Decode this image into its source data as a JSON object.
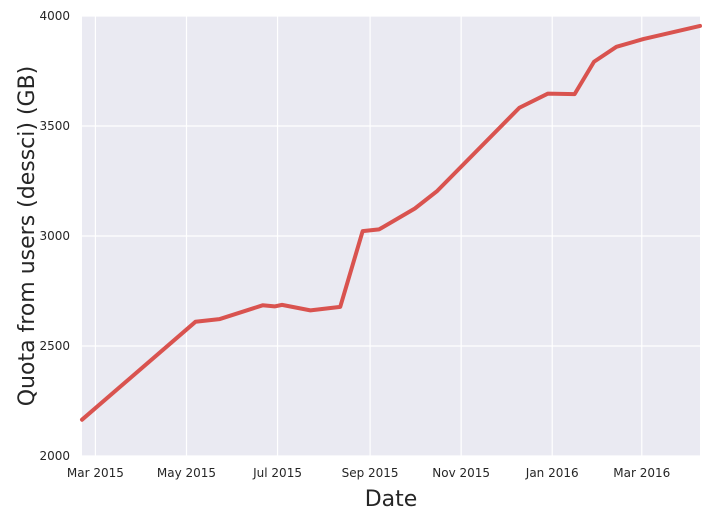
{
  "chart_data": {
    "type": "line",
    "title": "",
    "xlabel": "Date",
    "ylabel": "Quota from users (dessci) (GB)",
    "ylim": [
      2000,
      4000
    ],
    "xlim": [
      "2015-02-20",
      "2016-04-09"
    ],
    "grid": true,
    "x_tick_labels": [
      {
        "date": "2015-03-01",
        "label": "Mar 2015"
      },
      {
        "date": "2015-05-01",
        "label": "May 2015"
      },
      {
        "date": "2015-07-01",
        "label": "Jul 2015"
      },
      {
        "date": "2015-09-01",
        "label": "Sep 2015"
      },
      {
        "date": "2015-11-01",
        "label": "Nov 2015"
      },
      {
        "date": "2016-01-01",
        "label": "Jan 2016"
      },
      {
        "date": "2016-03-01",
        "label": "Mar 2016"
      }
    ],
    "y_ticks": [
      2000,
      2500,
      3000,
      3500,
      4000
    ],
    "y_tick_labels": [
      "2000",
      "2500",
      "3000",
      "3500",
      "4000"
    ],
    "series": [
      {
        "color": "#d9534f",
        "points": [
          {
            "x": "2015-02-20",
            "y": 2165
          },
          {
            "x": "2015-05-07",
            "y": 2610
          },
          {
            "x": "2015-05-23",
            "y": 2622
          },
          {
            "x": "2015-06-21",
            "y": 2685
          },
          {
            "x": "2015-06-29",
            "y": 2680
          },
          {
            "x": "2015-07-04",
            "y": 2687
          },
          {
            "x": "2015-07-23",
            "y": 2662
          },
          {
            "x": "2015-08-12",
            "y": 2678
          },
          {
            "x": "2015-08-27",
            "y": 3022
          },
          {
            "x": "2015-09-07",
            "y": 3030
          },
          {
            "x": "2015-10-01",
            "y": 3125
          },
          {
            "x": "2015-10-16",
            "y": 3205
          },
          {
            "x": "2015-12-10",
            "y": 3583
          },
          {
            "x": "2015-12-29",
            "y": 3647
          },
          {
            "x": "2016-01-16",
            "y": 3645
          },
          {
            "x": "2016-01-29",
            "y": 3792
          },
          {
            "x": "2016-02-13",
            "y": 3860
          },
          {
            "x": "2016-03-02",
            "y": 3895
          },
          {
            "x": "2016-04-09",
            "y": 3955
          }
        ]
      }
    ]
  },
  "colors": {
    "plot_background": "#eaeaf2",
    "grid": "#ffffff",
    "line": "#d9534f"
  }
}
